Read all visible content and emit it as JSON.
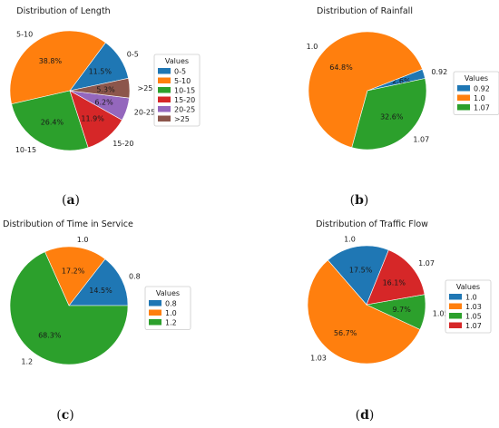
{
  "chart_data": [
    {
      "type": "pie",
      "title": "Distribution of Length",
      "categories": [
        "0-5",
        "5-10",
        "10-15",
        "15-20",
        "20-25",
        ">25"
      ],
      "values": [
        11.5,
        38.8,
        26.4,
        11.9,
        6.2,
        5.3
      ],
      "labels": [
        "11.5%",
        "38.8%",
        "26.4%",
        "11.9%",
        "6.2%",
        "5.3%"
      ],
      "colors": [
        "#1f77b4",
        "#ff7f0e",
        "#2ca02c",
        "#d62728",
        "#9467bd",
        "#8c564b"
      ],
      "legend_title": "Values",
      "legend_position": "right",
      "caption": "a"
    },
    {
      "type": "pie",
      "title": "Distribution of Rainfall",
      "categories": [
        "0.92",
        "1.0",
        "1.07"
      ],
      "values": [
        2.6,
        64.8,
        32.6
      ],
      "labels": [
        "2.6%",
        "64.8%",
        "32.6%"
      ],
      "colors": [
        "#1f77b4",
        "#ff7f0e",
        "#2ca02c"
      ],
      "legend_title": "Values",
      "legend_position": "right",
      "caption": "b"
    },
    {
      "type": "pie",
      "title": "Distribution of Time in Service",
      "categories": [
        "0.8",
        "1.0",
        "1.2"
      ],
      "values": [
        14.5,
        17.2,
        68.3
      ],
      "labels": [
        "14.5%",
        "17.2%",
        "68.3%"
      ],
      "colors": [
        "#1f77b4",
        "#ff7f0e",
        "#2ca02c"
      ],
      "legend_title": "Values",
      "legend_position": "right",
      "caption": "c"
    },
    {
      "type": "pie",
      "title": "Distribution of Traffic Flow",
      "categories": [
        "1.0",
        "1.03",
        "1.05",
        "1.07"
      ],
      "values": [
        17.5,
        56.7,
        9.7,
        16.1
      ],
      "labels": [
        "17.5%",
        "56.7%",
        "9.7%",
        "16.1%"
      ],
      "colors": [
        "#1f77b4",
        "#ff7f0e",
        "#2ca02c",
        "#d62728"
      ],
      "legend_title": "Values",
      "legend_position": "right",
      "caption": "d"
    }
  ]
}
